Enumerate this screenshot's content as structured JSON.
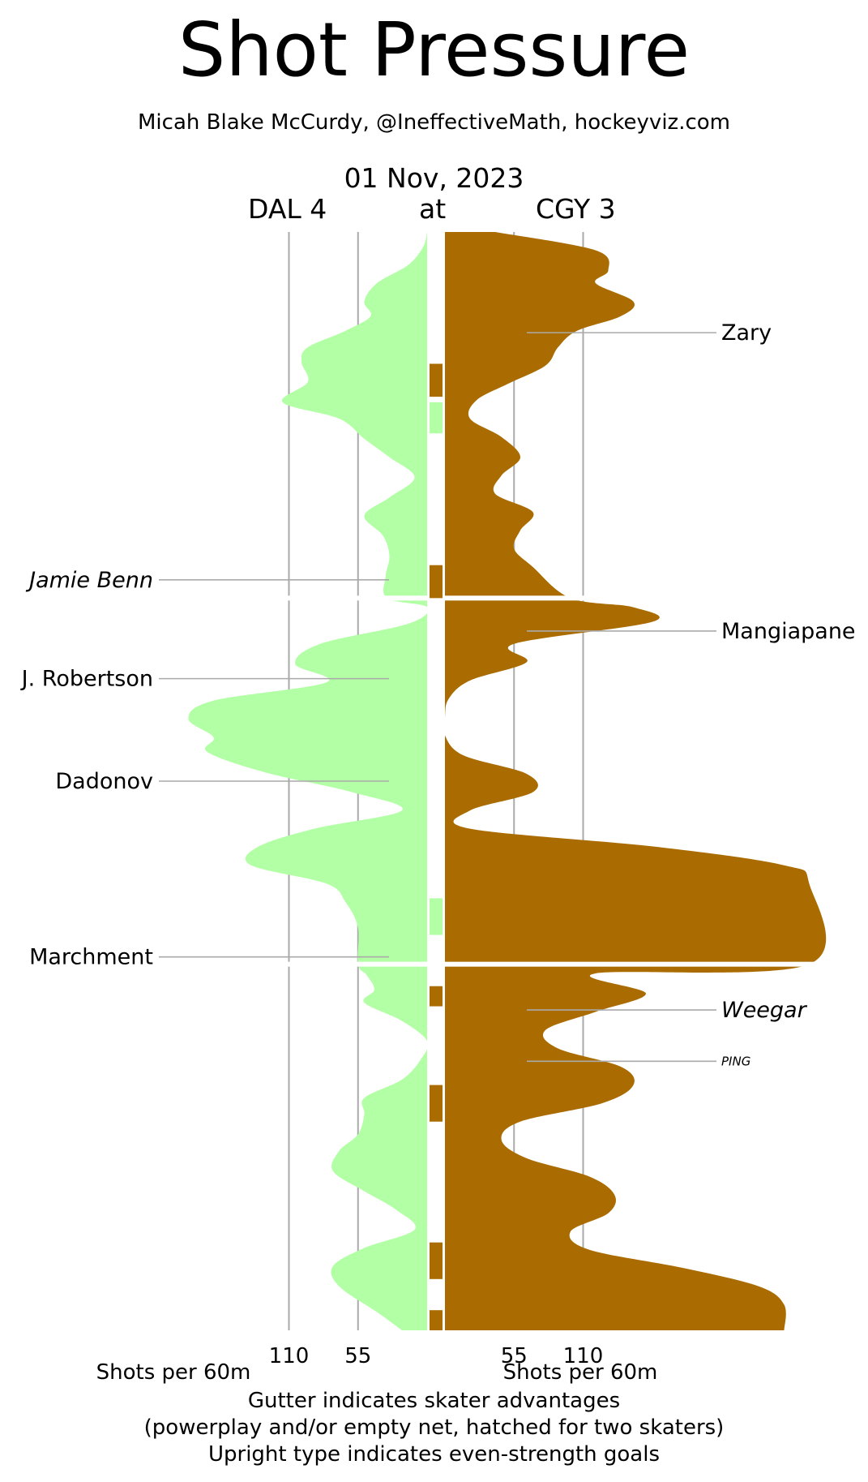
{
  "title": "Shot Pressure",
  "subtitle": "Micah Blake McCurdy, @IneffectiveMath, hockeyviz.com",
  "date": "01 Nov, 2023",
  "away_label": "DAL 4",
  "at_label": "at",
  "home_label": "CGY 3",
  "colors": {
    "away": "#b2ffa5",
    "home": "#aa6c00",
    "grid": "#aaaaaa"
  },
  "axis": {
    "xlabel_left": "Shots per 60m",
    "xlabel_right": "Shots per 60m"
  },
  "notes": [
    "Gutter indicates skater advantages",
    "(powerplay and/or empty net, hatched for two skaters)",
    "Upright type indicates even-strength goals"
  ],
  "chart_data": {
    "type": "area",
    "x_unit": "game minutes",
    "value_unit": "Shots per 60m",
    "x_range": [
      0,
      60
    ],
    "value_range": [
      0,
      250
    ],
    "ticks": [
      55,
      110
    ],
    "tick_labels": [
      "110",
      "55",
      "55",
      "110"
    ],
    "periods": [
      [
        0,
        20
      ],
      [
        20,
        40
      ],
      [
        40,
        60
      ]
    ],
    "series": [
      {
        "name": "DAL 4",
        "side": "left",
        "points": [
          [
            0,
            0
          ],
          [
            0.8,
            3
          ],
          [
            1.8,
            15
          ],
          [
            2.8,
            40
          ],
          [
            3.8,
            50
          ],
          [
            4.6,
            45
          ],
          [
            5.4,
            65
          ],
          [
            6.3,
            95
          ],
          [
            7.1,
            100
          ],
          [
            8.2,
            95
          ],
          [
            9.3,
            115
          ],
          [
            10.2,
            70
          ],
          [
            11.3,
            50
          ],
          [
            12.3,
            30
          ],
          [
            13.4,
            10
          ],
          [
            14.5,
            30
          ],
          [
            15.5,
            50
          ],
          [
            16.6,
            35
          ],
          [
            17.7,
            30
          ],
          [
            18.8,
            33
          ],
          [
            20,
            32
          ],
          [
            20.5,
            0
          ],
          [
            21.4,
            15
          ],
          [
            22.5,
            85
          ],
          [
            23.6,
            105
          ],
          [
            24.6,
            80
          ],
          [
            25.6,
            170
          ],
          [
            26.6,
            190
          ],
          [
            27.6,
            170
          ],
          [
            28.4,
            175
          ],
          [
            29.5,
            130
          ],
          [
            30.6,
            60
          ],
          [
            31.6,
            20
          ],
          [
            32.6,
            90
          ],
          [
            33.6,
            135
          ],
          [
            34.6,
            140
          ],
          [
            35.6,
            80
          ],
          [
            36.6,
            65
          ],
          [
            38,
            55
          ],
          [
            40,
            55
          ],
          [
            40.6,
            48
          ],
          [
            41.4,
            42
          ],
          [
            42.1,
            50
          ],
          [
            43.1,
            20
          ],
          [
            44.2,
            0
          ],
          [
            45.2,
            5
          ],
          [
            46.3,
            20
          ],
          [
            47.3,
            50
          ],
          [
            48.2,
            50
          ],
          [
            49.3,
            55
          ],
          [
            50.2,
            70
          ],
          [
            51.3,
            75
          ],
          [
            52.4,
            50
          ],
          [
            53.4,
            25
          ],
          [
            54.5,
            10
          ],
          [
            55.5,
            50
          ],
          [
            56.5,
            75
          ],
          [
            57.6,
            70
          ],
          [
            59,
            40
          ],
          [
            60,
            20
          ]
        ]
      },
      {
        "name": "CGY 3",
        "side": "right",
        "points": [
          [
            0,
            40
          ],
          [
            1,
            120
          ],
          [
            2.1,
            130
          ],
          [
            2.8,
            120
          ],
          [
            3.8,
            150
          ],
          [
            4.6,
            140
          ],
          [
            5.4,
            105
          ],
          [
            6.3,
            90
          ],
          [
            7.3,
            80
          ],
          [
            8.3,
            50
          ],
          [
            9.2,
            25
          ],
          [
            10.2,
            20
          ],
          [
            11.2,
            45
          ],
          [
            12.3,
            60
          ],
          [
            13.3,
            45
          ],
          [
            14.3,
            40
          ],
          [
            15.3,
            70
          ],
          [
            16.3,
            60
          ],
          [
            17.3,
            55
          ],
          [
            18.3,
            70
          ],
          [
            20,
            100
          ],
          [
            20.5,
            150
          ],
          [
            21.3,
            165
          ],
          [
            22.5,
            55
          ],
          [
            23.5,
            65
          ],
          [
            24.5,
            20
          ],
          [
            25.5,
            3
          ],
          [
            26.5,
            0
          ],
          [
            27.5,
            0
          ],
          [
            28.6,
            15
          ],
          [
            29.6,
            65
          ],
          [
            30.6,
            70
          ],
          [
            31.6,
            20
          ],
          [
            32.6,
            20
          ],
          [
            33.6,
            170
          ],
          [
            34.6,
            270
          ],
          [
            35.6,
            290
          ],
          [
            40,
            290
          ],
          [
            40.5,
            120
          ],
          [
            41.6,
            160
          ],
          [
            42.6,
            120
          ],
          [
            43.6,
            80
          ],
          [
            44.6,
            90
          ],
          [
            45.6,
            140
          ],
          [
            46.6,
            150
          ],
          [
            47.6,
            125
          ],
          [
            48.6,
            60
          ],
          [
            49.6,
            45
          ],
          [
            50.6,
            65
          ],
          [
            51.6,
            115
          ],
          [
            52.6,
            135
          ],
          [
            53.6,
            130
          ],
          [
            54.6,
            100
          ],
          [
            55.6,
            115
          ],
          [
            56.6,
            190
          ],
          [
            57.6,
            250
          ],
          [
            58.6,
            270
          ],
          [
            60,
            270
          ]
        ]
      }
    ],
    "gutter": [
      {
        "start": 7.2,
        "end": 9.0,
        "team": "CGY 3"
      },
      {
        "start": 9.3,
        "end": 11.0,
        "team": "DAL 4"
      },
      {
        "start": 18.2,
        "end": 20.0,
        "team": "CGY 3"
      },
      {
        "start": 36.4,
        "end": 38.4,
        "team": "DAL 4"
      },
      {
        "start": 41.2,
        "end": 42.3,
        "team": "CGY 3"
      },
      {
        "start": 46.6,
        "end": 48.6,
        "team": "CGY 3"
      },
      {
        "start": 55.2,
        "end": 57.2,
        "team": "CGY 3"
      },
      {
        "start": 58.9,
        "end": 60.0,
        "team": "CGY 3"
      }
    ],
    "goals": [
      {
        "team": "CGY 3",
        "label": "Zary",
        "time": 5.5,
        "italic": false,
        "small": false
      },
      {
        "team": "DAL 4",
        "label": "Jamie Benn",
        "time": 19.0,
        "italic": true,
        "small": false
      },
      {
        "team": "CGY 3",
        "label": "Mangiapane",
        "time": 21.8,
        "italic": false,
        "small": false
      },
      {
        "team": "DAL 4",
        "label": "J. Robertson",
        "time": 24.4,
        "italic": false,
        "small": false
      },
      {
        "team": "DAL 4",
        "label": "Dadonov",
        "time": 30.0,
        "italic": false,
        "small": false
      },
      {
        "team": "DAL 4",
        "label": "Marchment",
        "time": 39.6,
        "italic": false,
        "small": false
      },
      {
        "team": "CGY 3",
        "label": "Weegar",
        "time": 42.5,
        "italic": true,
        "small": false
      },
      {
        "team": "CGY 3",
        "label": "PING",
        "time": 45.3,
        "italic": true,
        "small": true
      }
    ]
  }
}
